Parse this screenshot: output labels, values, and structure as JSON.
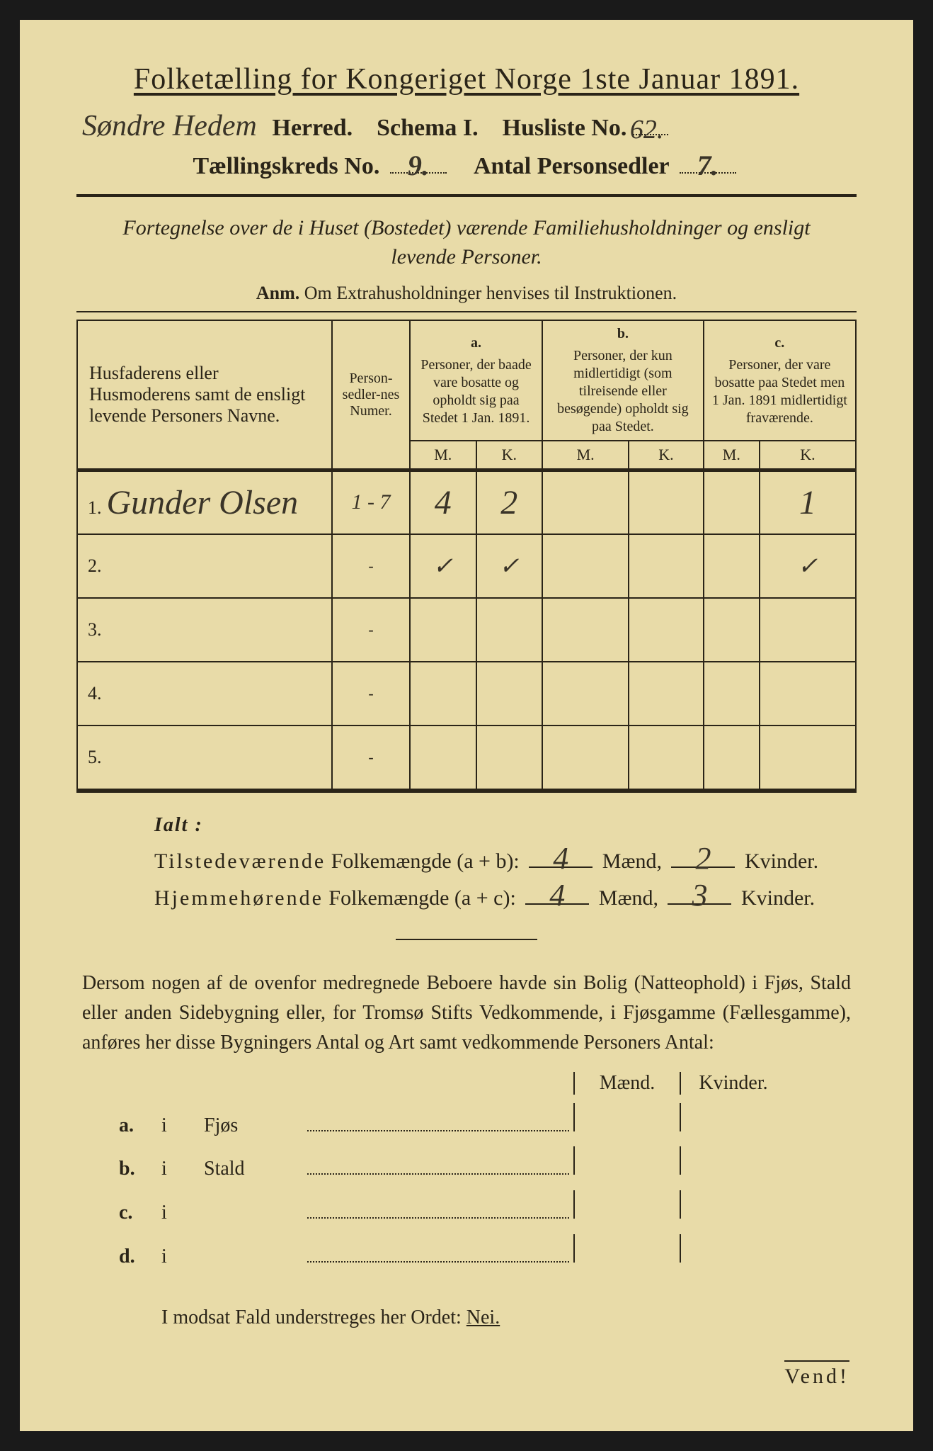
{
  "background_color": "#e8dba8",
  "text_color": "#2a2418",
  "handwriting_color": "#3a3428",
  "header": {
    "title_pre": "Folketælling for Kongeriget Norge 1ste Januar 1891.",
    "herred_handwritten": "Søndre Hedem",
    "herred_label": "Herred.",
    "schema": "Schema I.",
    "husliste_label": "Husliste No.",
    "husliste_no_hw": "62.",
    "kreds_label": "Tællingskreds No.",
    "kreds_no_hw": "9.",
    "antal_label": "Antal Personsedler",
    "antal_hw": "7."
  },
  "subtitle": "Fortegnelse over de i Huset (Bostedet) værende Familiehusholdninger og ensligt levende Personer.",
  "anm_label": "Anm.",
  "anm_text": "Om Extrahusholdninger henvises til Instruktionen.",
  "table": {
    "col1": "Husfaderens eller Husmoderens samt de ensligt levende Personers Navne.",
    "col2": "Person-sedler-nes Numer.",
    "col_a_label": "a.",
    "col_a": "Personer, der baade vare bosatte og opholdt sig paa Stedet 1 Jan. 1891.",
    "col_b_label": "b.",
    "col_b": "Personer, der kun midlertidigt (som tilreisende eller besøgende) opholdt sig paa Stedet.",
    "col_c_label": "c.",
    "col_c": "Personer, der vare bosatte paa Stedet men 1 Jan. 1891 midlertidigt fraværende.",
    "mk_m": "M.",
    "mk_k": "K.",
    "rows": [
      {
        "n": "1.",
        "name_hw": "Gunder Olsen",
        "num": "1 - 7",
        "a_m": "4",
        "a_k": "2",
        "b_m": "",
        "b_k": "",
        "c_m": "",
        "c_k": "1"
      },
      {
        "n": "2.",
        "name_hw": "",
        "num": "-",
        "a_m": "✓",
        "a_k": "✓",
        "b_m": "",
        "b_k": "",
        "c_m": "",
        "c_k": "✓"
      },
      {
        "n": "3.",
        "name_hw": "",
        "num": "-",
        "a_m": "",
        "a_k": "",
        "b_m": "",
        "b_k": "",
        "c_m": "",
        "c_k": ""
      },
      {
        "n": "4.",
        "name_hw": "",
        "num": "-",
        "a_m": "",
        "a_k": "",
        "b_m": "",
        "b_k": "",
        "c_m": "",
        "c_k": ""
      },
      {
        "n": "5.",
        "name_hw": "",
        "num": "-",
        "a_m": "",
        "a_k": "",
        "b_m": "",
        "b_k": "",
        "c_m": "",
        "c_k": ""
      }
    ]
  },
  "ialt": "Ialt :",
  "tot1_label_pre": "Tilstedeværende",
  "tot1_label_post": " Folkemængde (a + b):",
  "tot1_m": "4",
  "tot1_k": "2",
  "tot2_label_pre": "Hjemmehørende",
  "tot2_label_post": " Folkemængde (a + c):",
  "tot2_m": "4",
  "tot2_k": "3",
  "maend": "Mænd,",
  "kvinder": "Kvinder.",
  "maend2": "Mænd,",
  "kvinder2": "Kvinder.",
  "para": "Dersom nogen af de ovenfor medregnede Beboere havde sin Bolig (Natteophold) i Fjøs, Stald eller anden Sidebygning eller, for Tromsø Stifts Vedkommende, i Fjøsgamme (Fællesgamme), anføres her disse Bygningers Antal og Art samt vedkommende Personers Antal:",
  "mk_header_m": "Mænd.",
  "mk_header_k": "Kvinder.",
  "abcd": {
    "a": {
      "lab": "a.",
      "i": "i",
      "word": "Fjøs"
    },
    "b": {
      "lab": "b.",
      "i": "i",
      "word": "Stald"
    },
    "c": {
      "lab": "c.",
      "i": "i",
      "word": ""
    },
    "d": {
      "lab": "d.",
      "i": "i",
      "word": ""
    }
  },
  "nei_line_pre": "I modsat Fald understreges her Ordet: ",
  "nei": "Nei.",
  "vend": "Vend!"
}
